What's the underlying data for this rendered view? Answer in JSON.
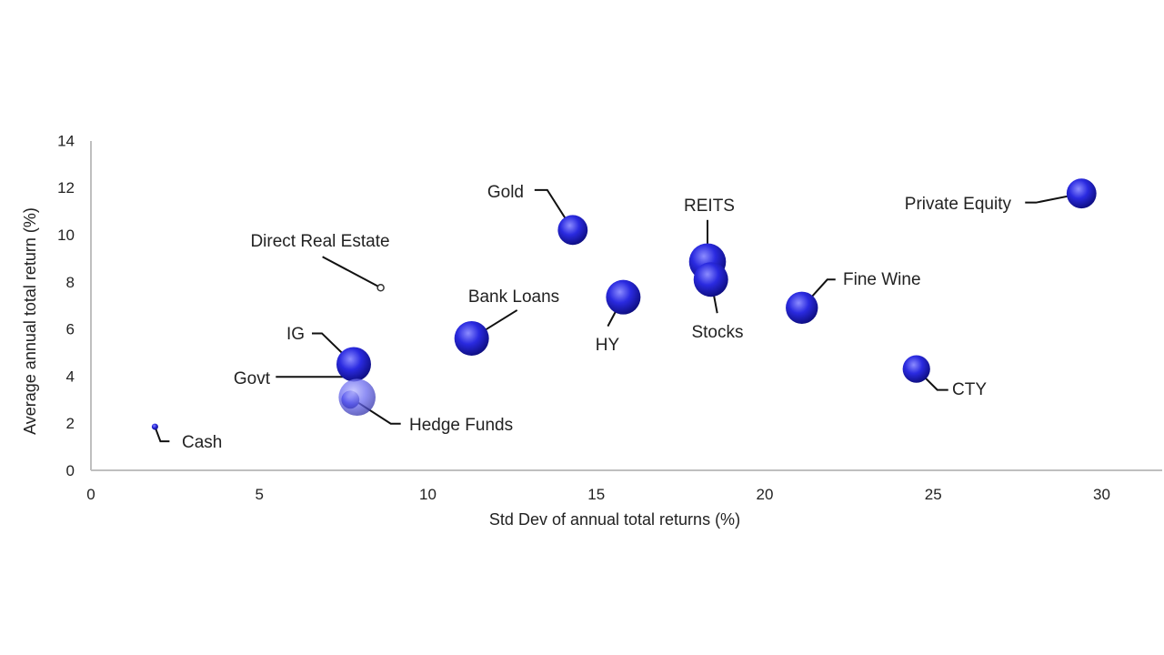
{
  "chart_data": {
    "type": "scatter",
    "title": "",
    "xlabel": "Std Dev of annual total returns (%)",
    "ylabel": "Average annual total return (%)",
    "xlim": [
      0,
      32
    ],
    "ylim": [
      0,
      14
    ],
    "xticks": [
      0,
      5,
      10,
      15,
      20,
      25,
      30
    ],
    "yticks": [
      0,
      2,
      4,
      6,
      8,
      10,
      12,
      14
    ],
    "grid": false,
    "legend": "none",
    "colors": {
      "point": "#2a2ae0",
      "point_highlight": "#8c8cff",
      "point_dark": "#0b0b78",
      "hollow_stroke": "#333333",
      "axis": "#bfbfbf",
      "leader": "#111111"
    },
    "points": [
      {
        "name": "Cash",
        "x": 1.9,
        "y": 1.85,
        "size": 1,
        "style": "solid"
      },
      {
        "name": "Govt",
        "x": 7.7,
        "y": 3.0,
        "size": 3,
        "style": "solid"
      },
      {
        "name": "Hedge Funds",
        "x": 7.9,
        "y": 3.1,
        "size": 11,
        "style": "faded"
      },
      {
        "name": "IG",
        "x": 7.8,
        "y": 4.5,
        "size": 10,
        "style": "solid"
      },
      {
        "name": "Direct Real Estate",
        "x": 8.6,
        "y": 7.75,
        "size": 1,
        "style": "hollow"
      },
      {
        "name": "Bank Loans",
        "x": 11.3,
        "y": 5.6,
        "size": 10,
        "style": "solid"
      },
      {
        "name": "Gold",
        "x": 14.3,
        "y": 10.2,
        "size": 8,
        "style": "solid"
      },
      {
        "name": "HY",
        "x": 15.8,
        "y": 7.35,
        "size": 10,
        "style": "solid"
      },
      {
        "name": "REITS",
        "x": 18.3,
        "y": 8.85,
        "size": 11,
        "style": "solid"
      },
      {
        "name": "Stocks",
        "x": 18.4,
        "y": 8.1,
        "size": 10,
        "style": "solid"
      },
      {
        "name": "Fine Wine",
        "x": 21.1,
        "y": 6.9,
        "size": 9,
        "style": "solid"
      },
      {
        "name": "CTY",
        "x": 24.5,
        "y": 4.3,
        "size": 7,
        "style": "solid"
      },
      {
        "name": "Private Equity",
        "x": 29.4,
        "y": 11.75,
        "size": 8,
        "style": "solid"
      }
    ]
  }
}
